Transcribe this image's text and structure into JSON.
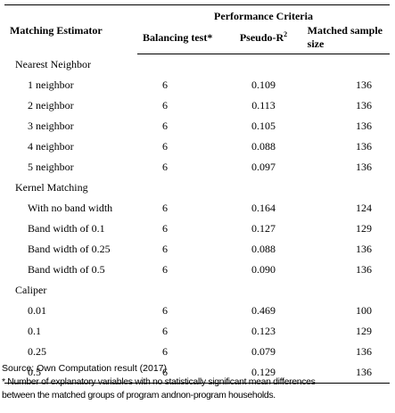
{
  "header": {
    "estimator_label": "Matching Estimator",
    "group_label": "Performance Criteria",
    "col_balancing": "Balancing test*",
    "col_pseudo": "Pseudo-R",
    "col_pseudo_sup": "2",
    "col_matched": "Matched sample size"
  },
  "groups": [
    {
      "name": "Nearest Neighbor",
      "rows": [
        {
          "label": "1 neighbor",
          "balancing": "6",
          "pseudo_r2": "0.109",
          "matched": "136"
        },
        {
          "label": "2 neighbor",
          "balancing": "6",
          "pseudo_r2": "0.113",
          "matched": "136"
        },
        {
          "label": "3 neighbor",
          "balancing": "6",
          "pseudo_r2": "0.105",
          "matched": "136"
        },
        {
          "label": "4 neighbor",
          "balancing": "6",
          "pseudo_r2": "0.088",
          "matched": "136"
        },
        {
          "label": "5 neighbor",
          "balancing": "6",
          "pseudo_r2": "0.097",
          "matched": "136"
        }
      ]
    },
    {
      "name": "Kernel Matching",
      "rows": [
        {
          "label": "With no band width",
          "balancing": "6",
          "pseudo_r2": "0.164",
          "matched": "124"
        },
        {
          "label": "Band width of 0.1",
          "balancing": "6",
          "pseudo_r2": "0.127",
          "matched": "129"
        },
        {
          "label": "Band width of 0.25",
          "balancing": "6",
          "pseudo_r2": "0.088",
          "matched": "136"
        },
        {
          "label": "Band width of 0.5",
          "balancing": "6",
          "pseudo_r2": "0.090",
          "matched": "136"
        }
      ]
    },
    {
      "name": "Caliper",
      "rows": [
        {
          "label": "0.01",
          "balancing": "6",
          "pseudo_r2": "0.469",
          "matched": "100"
        },
        {
          "label": "0.1",
          "balancing": "6",
          "pseudo_r2": "0.123",
          "matched": "129"
        },
        {
          "label": "0.25",
          "balancing": "6",
          "pseudo_r2": "0.079",
          "matched": "136"
        },
        {
          "label": "0.5",
          "balancing": "6",
          "pseudo_r2": "0.129",
          "matched": "136"
        }
      ]
    }
  ],
  "notes": {
    "source": "Source: Own Computation result (2017)",
    "footnote_line1": "* Number of explanatory variables with no statistically significant mean differences",
    "footnote_line2": "between the matched groups of program andnon-program households."
  }
}
